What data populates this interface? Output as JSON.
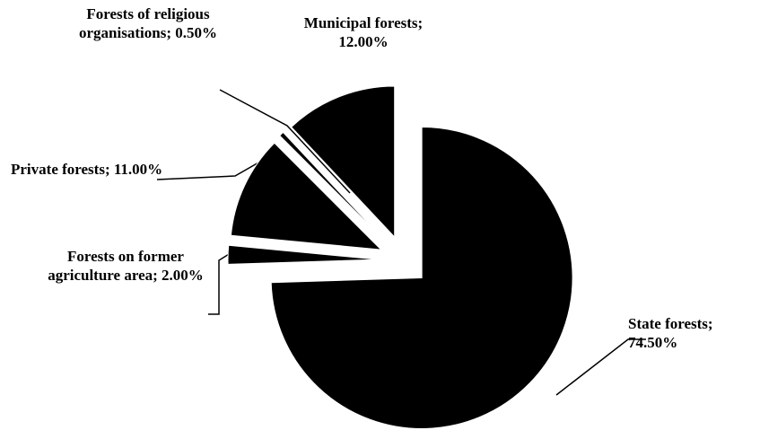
{
  "chart_data": {
    "type": "pie",
    "categories": [
      "State forests",
      "Forests on former agriculture area",
      "Private forests",
      "Forests of religious organisations",
      "Municipal forests"
    ],
    "values": [
      74.5,
      2.0,
      11.0,
      0.5,
      12.0
    ],
    "value_labels": [
      "74.50%",
      "2.00%",
      "11.00%",
      "0.50%",
      "12.00%"
    ],
    "label_separator": ";",
    "color": "#000000",
    "exploded": true
  }
}
